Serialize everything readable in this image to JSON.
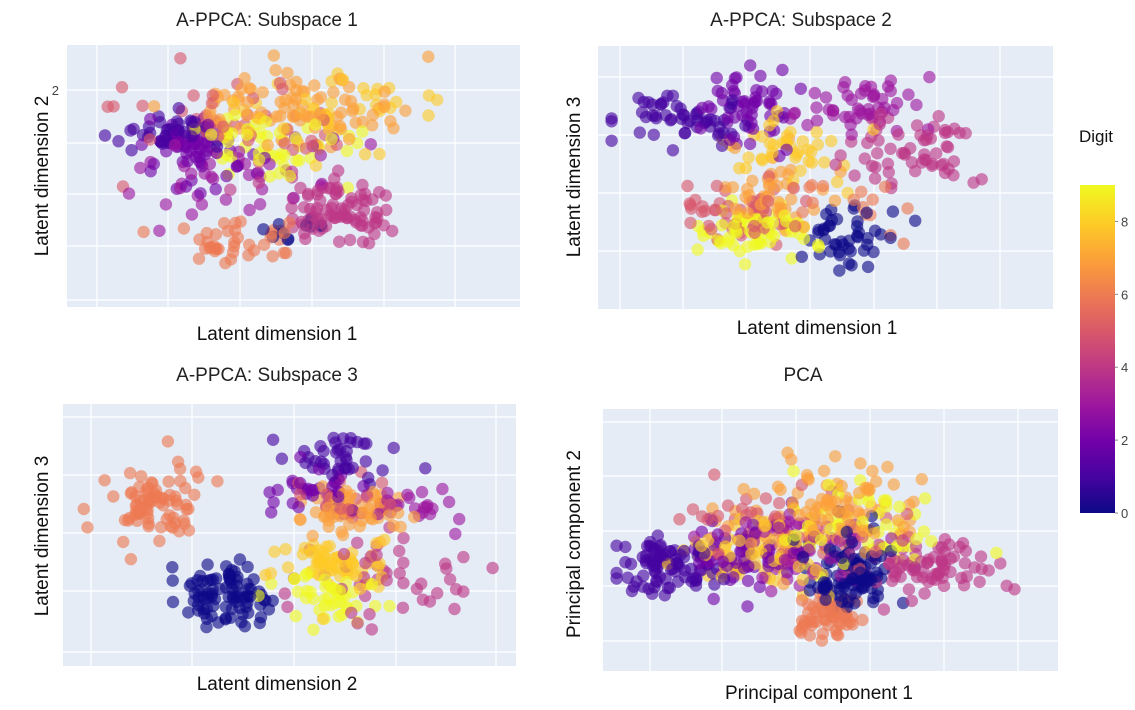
{
  "chart_data": [
    {
      "type": "scatter",
      "title": "A-PPCA: Subspace 1",
      "xlabel": "Latent dimension 1",
      "ylabel": "Latent dimension 2",
      "y_ticks": [
        {
          "value": 2,
          "label": "2"
        }
      ],
      "clusters": [
        {
          "digit": 0,
          "cx": 0.52,
          "cy": 0.28,
          "sx": 0.04,
          "sy": 0.04,
          "n": 10
        },
        {
          "digit": 1,
          "cx": 0.21,
          "cy": 0.66,
          "sx": 0.06,
          "sy": 0.04,
          "n": 40
        },
        {
          "digit": 2,
          "cx": 0.28,
          "cy": 0.58,
          "sx": 0.06,
          "sy": 0.07,
          "n": 60
        },
        {
          "digit": 3,
          "cx": 0.42,
          "cy": 0.5,
          "sx": 0.12,
          "sy": 0.1,
          "n": 40
        },
        {
          "digit": 4,
          "cx": 0.6,
          "cy": 0.36,
          "sx": 0.06,
          "sy": 0.06,
          "n": 90
        },
        {
          "digit": 5,
          "cx": 0.36,
          "cy": 0.7,
          "sx": 0.12,
          "sy": 0.08,
          "n": 45
        },
        {
          "digit": 6,
          "cx": 0.36,
          "cy": 0.24,
          "sx": 0.06,
          "sy": 0.04,
          "n": 40
        },
        {
          "digit": 7,
          "cx": 0.5,
          "cy": 0.76,
          "sx": 0.12,
          "sy": 0.07,
          "n": 90
        },
        {
          "digit": 8,
          "cx": 0.63,
          "cy": 0.74,
          "sx": 0.12,
          "sy": 0.08,
          "n": 40
        },
        {
          "digit": 9,
          "cx": 0.45,
          "cy": 0.62,
          "sx": 0.1,
          "sy": 0.07,
          "n": 50
        }
      ]
    },
    {
      "type": "scatter",
      "title": "A-PPCA: Subspace 2",
      "xlabel": "Latent dimension 1",
      "ylabel": "Latent dimension 3",
      "y_ticks": [],
      "clusters": [
        {
          "digit": 0,
          "cx": 0.54,
          "cy": 0.28,
          "sx": 0.05,
          "sy": 0.06,
          "n": 45
        },
        {
          "digit": 1,
          "cx": 0.18,
          "cy": 0.72,
          "sx": 0.07,
          "sy": 0.04,
          "n": 55
        },
        {
          "digit": 2,
          "cx": 0.33,
          "cy": 0.75,
          "sx": 0.05,
          "sy": 0.08,
          "n": 55
        },
        {
          "digit": 3,
          "cx": 0.58,
          "cy": 0.78,
          "sx": 0.06,
          "sy": 0.06,
          "n": 50
        },
        {
          "digit": 4,
          "cx": 0.72,
          "cy": 0.6,
          "sx": 0.07,
          "sy": 0.08,
          "n": 60
        },
        {
          "digit": 5,
          "cx": 0.32,
          "cy": 0.38,
          "sx": 0.07,
          "sy": 0.06,
          "n": 50
        },
        {
          "digit": 6,
          "cx": 0.55,
          "cy": 0.42,
          "sx": 0.06,
          "sy": 0.06,
          "n": 15
        },
        {
          "digit": 7,
          "cx": 0.4,
          "cy": 0.45,
          "sx": 0.07,
          "sy": 0.07,
          "n": 45
        },
        {
          "digit": 8,
          "cx": 0.42,
          "cy": 0.62,
          "sx": 0.06,
          "sy": 0.07,
          "n": 40
        },
        {
          "digit": 9,
          "cx": 0.34,
          "cy": 0.3,
          "sx": 0.06,
          "sy": 0.05,
          "n": 70
        }
      ]
    },
    {
      "type": "scatter",
      "title": "A-PPCA: Subspace 3",
      "xlabel": "Latent dimension 2",
      "ylabel": "Latent dimension 3",
      "y_ticks": [],
      "clusters": [
        {
          "digit": 0,
          "cx": 0.36,
          "cy": 0.28,
          "sx": 0.05,
          "sy": 0.06,
          "n": 90
        },
        {
          "digit": 1,
          "cx": 0.6,
          "cy": 0.8,
          "sx": 0.06,
          "sy": 0.05,
          "n": 40
        },
        {
          "digit": 2,
          "cx": 0.56,
          "cy": 0.68,
          "sx": 0.05,
          "sy": 0.05,
          "n": 35
        },
        {
          "digit": 3,
          "cx": 0.78,
          "cy": 0.6,
          "sx": 0.07,
          "sy": 0.05,
          "n": 25
        },
        {
          "digit": 4,
          "cx": 0.7,
          "cy": 0.32,
          "sx": 0.1,
          "sy": 0.1,
          "n": 45
        },
        {
          "digit": 5,
          "cx": 0.64,
          "cy": 0.62,
          "sx": 0.07,
          "sy": 0.06,
          "n": 20
        },
        {
          "digit": 6,
          "cx": 0.2,
          "cy": 0.62,
          "sx": 0.05,
          "sy": 0.08,
          "n": 80
        },
        {
          "digit": 7,
          "cx": 0.64,
          "cy": 0.6,
          "sx": 0.06,
          "sy": 0.05,
          "n": 60
        },
        {
          "digit": 8,
          "cx": 0.6,
          "cy": 0.38,
          "sx": 0.07,
          "sy": 0.05,
          "n": 60
        },
        {
          "digit": 9,
          "cx": 0.6,
          "cy": 0.28,
          "sx": 0.06,
          "sy": 0.05,
          "n": 45
        }
      ]
    },
    {
      "type": "scatter",
      "title": "PCA",
      "xlabel": "Principal component 1",
      "ylabel": "Principal component 2",
      "y_ticks": [],
      "clusters": [
        {
          "digit": 0,
          "cx": 0.54,
          "cy": 0.38,
          "sx": 0.05,
          "sy": 0.08,
          "n": 100
        },
        {
          "digit": 1,
          "cx": 0.14,
          "cy": 0.4,
          "sx": 0.06,
          "sy": 0.05,
          "n": 90
        },
        {
          "digit": 2,
          "cx": 0.3,
          "cy": 0.45,
          "sx": 0.07,
          "sy": 0.07,
          "n": 60
        },
        {
          "digit": 3,
          "cx": 0.45,
          "cy": 0.45,
          "sx": 0.1,
          "sy": 0.08,
          "n": 60
        },
        {
          "digit": 4,
          "cx": 0.72,
          "cy": 0.4,
          "sx": 0.07,
          "sy": 0.06,
          "n": 80
        },
        {
          "digit": 5,
          "cx": 0.38,
          "cy": 0.55,
          "sx": 0.1,
          "sy": 0.08,
          "n": 60
        },
        {
          "digit": 6,
          "cx": 0.5,
          "cy": 0.22,
          "sx": 0.04,
          "sy": 0.05,
          "n": 60
        },
        {
          "digit": 7,
          "cx": 0.5,
          "cy": 0.62,
          "sx": 0.1,
          "sy": 0.1,
          "n": 100
        },
        {
          "digit": 8,
          "cx": 0.35,
          "cy": 0.45,
          "sx": 0.08,
          "sy": 0.08,
          "n": 60
        },
        {
          "digit": 9,
          "cx": 0.55,
          "cy": 0.55,
          "sx": 0.1,
          "sy": 0.08,
          "n": 60
        }
      ]
    }
  ],
  "colorbar": {
    "title": "Digit",
    "range": [
      0,
      9
    ],
    "ticks": [
      "0",
      "2",
      "4",
      "6",
      "8"
    ],
    "colors": [
      "#0d0887",
      "#46039f",
      "#7201a8",
      "#9c179e",
      "#bd3786",
      "#d8576b",
      "#ed7953",
      "#fb9f3a",
      "#fdca26",
      "#f0f921"
    ]
  },
  "style": {
    "plot_bg": "#e5ecf6",
    "grid": "#ffffff"
  }
}
